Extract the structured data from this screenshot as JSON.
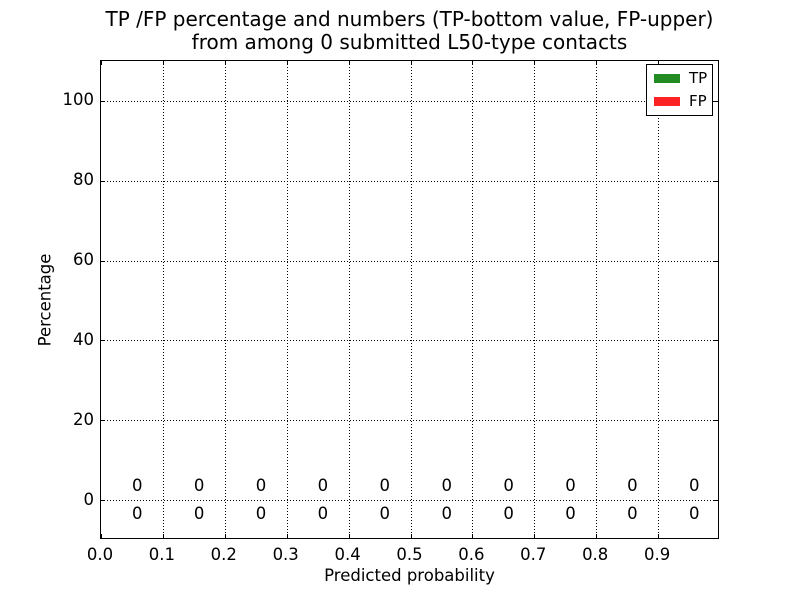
{
  "chart_data": {
    "type": "bar",
    "title_lines": [
      "TP /FP percentage and numbers (TP-bottom value, FP-upper)",
      "from among 0 submitted L50-type contacts"
    ],
    "xlabel": "Predicted probability",
    "ylabel": "Percentage",
    "xlim": [
      0.0,
      1.0
    ],
    "ylim": [
      -10,
      110
    ],
    "xticks": [
      {
        "value": 0.0,
        "label": "0.0"
      },
      {
        "value": 0.1,
        "label": "0.1"
      },
      {
        "value": 0.2,
        "label": "0.2"
      },
      {
        "value": 0.3,
        "label": "0.3"
      },
      {
        "value": 0.4,
        "label": "0.4"
      },
      {
        "value": 0.5,
        "label": "0.5"
      },
      {
        "value": 0.6,
        "label": "0.6"
      },
      {
        "value": 0.7,
        "label": "0.7"
      },
      {
        "value": 0.8,
        "label": "0.8"
      },
      {
        "value": 0.9,
        "label": "0.9"
      }
    ],
    "yticks": [
      {
        "value": 0,
        "label": "0"
      },
      {
        "value": 20,
        "label": "20"
      },
      {
        "value": 40,
        "label": "40"
      },
      {
        "value": 60,
        "label": "60"
      },
      {
        "value": 80,
        "label": "80"
      },
      {
        "value": 100,
        "label": "100"
      }
    ],
    "grid": {
      "on": true,
      "linestyle": "dotted",
      "color": "#000000"
    },
    "legend": {
      "position": "upper-right",
      "entries": [
        {
          "label": "TP",
          "color": "#228B22"
        },
        {
          "label": "FP",
          "color": "#FF2222"
        }
      ]
    },
    "bin_centers": [
      0.05,
      0.15,
      0.25,
      0.35,
      0.45,
      0.55,
      0.65,
      0.75,
      0.85,
      0.95
    ],
    "series": [
      {
        "name": "TP",
        "color": "#228B22",
        "annotation_row": "below-zero-line",
        "values": [
          0,
          0,
          0,
          0,
          0,
          0,
          0,
          0,
          0,
          0
        ]
      },
      {
        "name": "FP",
        "color": "#FF2222",
        "annotation_row": "above-zero-line",
        "values": [
          0,
          0,
          0,
          0,
          0,
          0,
          0,
          0,
          0,
          0
        ]
      }
    ]
  }
}
